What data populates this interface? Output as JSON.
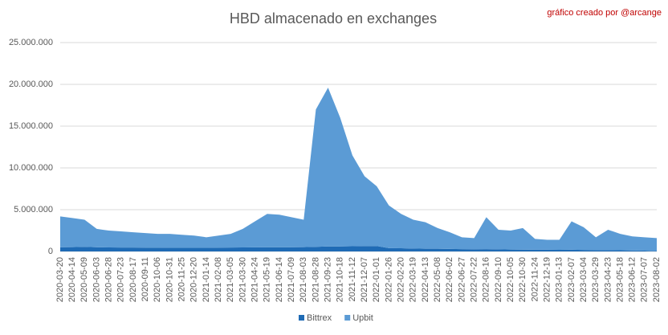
{
  "chart_data": {
    "type": "stacked_area",
    "title": "HBD almacenado en exchanges",
    "annotation": "gráfico creado por @arcange",
    "categories": [
      "2020-03-20",
      "2020-04-14",
      "2020-05-09",
      "2020-06-03",
      "2020-06-28",
      "2020-07-23",
      "2020-08-17",
      "2020-09-11",
      "2020-10-06",
      "2020-10-31",
      "2020-11-25",
      "2020-12-20",
      "2021-01-14",
      "2021-02-08",
      "2021-03-05",
      "2021-03-30",
      "2021-04-24",
      "2021-05-19",
      "2021-06-14",
      "2021-07-09",
      "2021-08-03",
      "2021-08-28",
      "2021-09-23",
      "2021-10-18",
      "2021-11-12",
      "2021-12-07",
      "2022-01-01",
      "2022-01-26",
      "2022-02-20",
      "2022-03-19",
      "2022-04-13",
      "2022-05-08",
      "2022-06-02",
      "2022-06-27",
      "2022-07-22",
      "2022-08-16",
      "2022-09-10",
      "2022-10-05",
      "2022-10-30",
      "2022-11-24",
      "2022-12-19",
      "2023-01-13",
      "2023-02-07",
      "2023-03-04",
      "2023-03-29",
      "2023-04-23",
      "2023-05-18",
      "2023-06-12",
      "2023-07-07",
      "2023-08-02"
    ],
    "series": [
      {
        "name": "Bittrex",
        "color": "#1f6bb5",
        "values": [
          500000,
          520000,
          550000,
          500000,
          480000,
          470000,
          470000,
          460000,
          460000,
          450000,
          450000,
          450000,
          450000,
          460000,
          470000,
          480000,
          490000,
          500000,
          500000,
          500000,
          520000,
          550000,
          600000,
          600000,
          620000,
          650000,
          650000,
          400000,
          380000,
          350000,
          330000,
          320000,
          300000,
          280000,
          270000,
          280000,
          250000,
          230000,
          220000,
          200000,
          200000,
          190000,
          200000,
          180000,
          170000,
          160000,
          150000,
          120000,
          100000,
          50000
        ]
      },
      {
        "name": "Upbit",
        "color": "#5b9bd5",
        "values": [
          3700000,
          3480000,
          3250000,
          2200000,
          2020000,
          1930000,
          1830000,
          1740000,
          1640000,
          1650000,
          1550000,
          1450000,
          1250000,
          1440000,
          1630000,
          2220000,
          3110000,
          4000000,
          3900000,
          3600000,
          3280000,
          16450000,
          19000000,
          15400000,
          10880000,
          8350000,
          7150000,
          5100000,
          4120000,
          3450000,
          3170000,
          2480000,
          2000000,
          1420000,
          1330000,
          3820000,
          2350000,
          2270000,
          2580000,
          1300000,
          1200000,
          1210000,
          3400000,
          2720000,
          1530000,
          2440000,
          1950000,
          1680000,
          1600000,
          1550000
        ]
      }
    ],
    "ylim": [
      0,
      25000000
    ],
    "yticks": [
      0,
      {
        "value": 5000000,
        "label": "5.000.000"
      },
      {
        "value": 10000000,
        "label": "10.000.000"
      },
      {
        "value": 15000000,
        "label": "15.000.000"
      },
      {
        "value": 20000000,
        "label": "20.000.000"
      },
      {
        "value": 25000000,
        "label": "25.000.000"
      }
    ],
    "grid": true,
    "legend": "bottom"
  }
}
